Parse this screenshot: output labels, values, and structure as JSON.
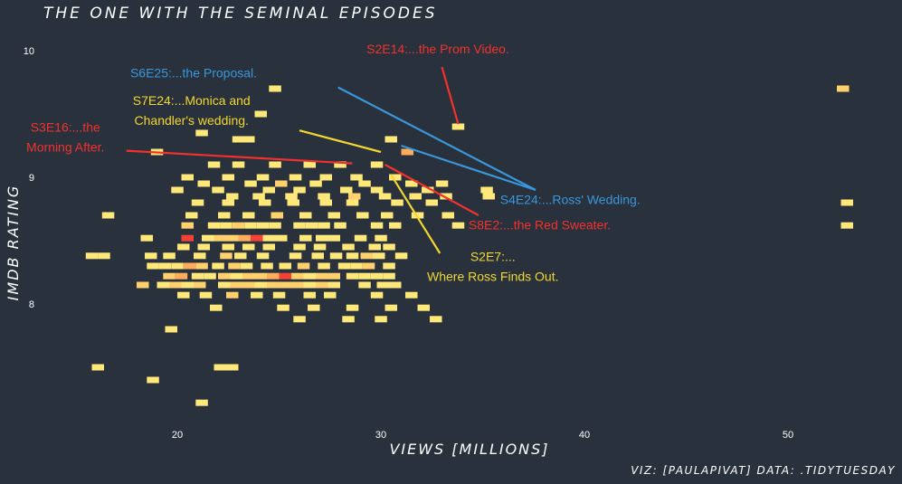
{
  "chart_data": {
    "type": "heatmap",
    "title": "THE ONE WITH THE SEMINAL EPISODES",
    "xlabel": "VIEWS [MILLIONS]",
    "ylabel": "IMDB RATING",
    "caption": "VIZ: [PAULAPIVAT] DATA: .TIDYTUESDAY",
    "xlim": [
      12,
      57
    ],
    "ylim": [
      7.15,
      10.15
    ],
    "xticks": [
      "20",
      "30",
      "40",
      "50"
    ],
    "yticks": [
      "8",
      "9",
      "10"
    ],
    "bin_width": 0.6,
    "bin_height": 0.05,
    "colors": {
      "background": "#29323c",
      "low": "#ffe87a",
      "mid": "#ffab5c",
      "high": "#f44336",
      "red": "#f2312e",
      "blue": "#3a96db",
      "yellow": "#f2d631"
    },
    "cells": [
      {
        "x": 24.8,
        "y": 9.7,
        "n": 1
      },
      {
        "x": 52.7,
        "y": 9.7,
        "n": 2
      },
      {
        "x": 24.1,
        "y": 9.5,
        "n": 1
      },
      {
        "x": 33.8,
        "y": 9.4,
        "n": 1
      },
      {
        "x": 21.2,
        "y": 9.35,
        "n": 1
      },
      {
        "x": 23.0,
        "y": 9.3,
        "n": 1
      },
      {
        "x": 23.5,
        "y": 9.3,
        "n": 1
      },
      {
        "x": 30.5,
        "y": 9.3,
        "n": 1
      },
      {
        "x": 19.0,
        "y": 9.2,
        "n": 1
      },
      {
        "x": 31.3,
        "y": 9.2,
        "n": 3
      },
      {
        "x": 21.8,
        "y": 9.1,
        "n": 1
      },
      {
        "x": 23.0,
        "y": 9.1,
        "n": 1
      },
      {
        "x": 24.8,
        "y": 9.1,
        "n": 1
      },
      {
        "x": 26.5,
        "y": 9.1,
        "n": 1
      },
      {
        "x": 28.0,
        "y": 9.1,
        "n": 1
      },
      {
        "x": 29.8,
        "y": 9.1,
        "n": 1
      },
      {
        "x": 20.5,
        "y": 9.0,
        "n": 1
      },
      {
        "x": 22.5,
        "y": 9.0,
        "n": 1
      },
      {
        "x": 24.2,
        "y": 9.0,
        "n": 1
      },
      {
        "x": 25.8,
        "y": 9.0,
        "n": 1
      },
      {
        "x": 27.3,
        "y": 9.0,
        "n": 1
      },
      {
        "x": 28.8,
        "y": 9.0,
        "n": 1
      },
      {
        "x": 30.7,
        "y": 9.0,
        "n": 1
      },
      {
        "x": 21.3,
        "y": 8.95,
        "n": 1
      },
      {
        "x": 23.6,
        "y": 8.95,
        "n": 1
      },
      {
        "x": 25.1,
        "y": 8.95,
        "n": 2
      },
      {
        "x": 26.8,
        "y": 8.95,
        "n": 1
      },
      {
        "x": 29.2,
        "y": 8.95,
        "n": 1
      },
      {
        "x": 31.5,
        "y": 8.95,
        "n": 1
      },
      {
        "x": 33.0,
        "y": 8.95,
        "n": 1
      },
      {
        "x": 35.2,
        "y": 8.9,
        "n": 1
      },
      {
        "x": 20.0,
        "y": 8.9,
        "n": 1
      },
      {
        "x": 22.0,
        "y": 8.9,
        "n": 1
      },
      {
        "x": 24.5,
        "y": 8.9,
        "n": 1
      },
      {
        "x": 26.0,
        "y": 8.9,
        "n": 1
      },
      {
        "x": 28.3,
        "y": 8.9,
        "n": 1
      },
      {
        "x": 29.8,
        "y": 8.9,
        "n": 1
      },
      {
        "x": 32.3,
        "y": 8.9,
        "n": 1
      },
      {
        "x": 22.7,
        "y": 8.85,
        "n": 1
      },
      {
        "x": 24.0,
        "y": 8.85,
        "n": 1
      },
      {
        "x": 25.6,
        "y": 8.85,
        "n": 1
      },
      {
        "x": 27.2,
        "y": 8.85,
        "n": 1
      },
      {
        "x": 28.7,
        "y": 8.85,
        "n": 2
      },
      {
        "x": 30.2,
        "y": 8.85,
        "n": 1
      },
      {
        "x": 31.7,
        "y": 8.85,
        "n": 1
      },
      {
        "x": 33.2,
        "y": 8.85,
        "n": 1
      },
      {
        "x": 35.3,
        "y": 8.85,
        "n": 1
      },
      {
        "x": 52.9,
        "y": 8.8,
        "n": 1
      },
      {
        "x": 21.0,
        "y": 8.8,
        "n": 1
      },
      {
        "x": 22.5,
        "y": 8.8,
        "n": 1
      },
      {
        "x": 24.3,
        "y": 8.8,
        "n": 1
      },
      {
        "x": 25.7,
        "y": 8.8,
        "n": 1
      },
      {
        "x": 27.3,
        "y": 8.8,
        "n": 1
      },
      {
        "x": 28.6,
        "y": 8.8,
        "n": 1
      },
      {
        "x": 30.8,
        "y": 8.8,
        "n": 1
      },
      {
        "x": 32.5,
        "y": 8.8,
        "n": 1
      },
      {
        "x": 16.6,
        "y": 8.7,
        "n": 1
      },
      {
        "x": 20.7,
        "y": 8.7,
        "n": 1
      },
      {
        "x": 22.3,
        "y": 8.7,
        "n": 1
      },
      {
        "x": 23.5,
        "y": 8.7,
        "n": 1
      },
      {
        "x": 24.9,
        "y": 8.7,
        "n": 2
      },
      {
        "x": 26.3,
        "y": 8.7,
        "n": 1
      },
      {
        "x": 27.7,
        "y": 8.7,
        "n": 1
      },
      {
        "x": 29.1,
        "y": 8.7,
        "n": 1
      },
      {
        "x": 30.3,
        "y": 8.7,
        "n": 1
      },
      {
        "x": 31.8,
        "y": 8.7,
        "n": 1
      },
      {
        "x": 33.3,
        "y": 8.7,
        "n": 1
      },
      {
        "x": 20.5,
        "y": 8.62,
        "n": 2
      },
      {
        "x": 21.8,
        "y": 8.62,
        "n": 1
      },
      {
        "x": 22.4,
        "y": 8.62,
        "n": 1
      },
      {
        "x": 23.0,
        "y": 8.62,
        "n": 2
      },
      {
        "x": 23.6,
        "y": 8.62,
        "n": 1
      },
      {
        "x": 24.2,
        "y": 8.62,
        "n": 1
      },
      {
        "x": 24.8,
        "y": 8.62,
        "n": 1
      },
      {
        "x": 26.0,
        "y": 8.62,
        "n": 1
      },
      {
        "x": 26.6,
        "y": 8.62,
        "n": 1
      },
      {
        "x": 27.2,
        "y": 8.62,
        "n": 1
      },
      {
        "x": 28.0,
        "y": 8.62,
        "n": 1
      },
      {
        "x": 29.8,
        "y": 8.62,
        "n": 1
      },
      {
        "x": 30.7,
        "y": 8.62,
        "n": 1
      },
      {
        "x": 33.8,
        "y": 8.62,
        "n": 1
      },
      {
        "x": 52.9,
        "y": 8.62,
        "n": 1
      },
      {
        "x": 18.5,
        "y": 8.52,
        "n": 1
      },
      {
        "x": 20.5,
        "y": 8.52,
        "n": 4
      },
      {
        "x": 21.5,
        "y": 8.52,
        "n": 1
      },
      {
        "x": 22.1,
        "y": 8.52,
        "n": 2
      },
      {
        "x": 22.7,
        "y": 8.52,
        "n": 2
      },
      {
        "x": 23.3,
        "y": 8.52,
        "n": 3
      },
      {
        "x": 23.9,
        "y": 8.52,
        "n": 4
      },
      {
        "x": 24.5,
        "y": 8.52,
        "n": 1
      },
      {
        "x": 25.1,
        "y": 8.52,
        "n": 1
      },
      {
        "x": 26.3,
        "y": 8.52,
        "n": 1
      },
      {
        "x": 27.1,
        "y": 8.52,
        "n": 1
      },
      {
        "x": 27.7,
        "y": 8.52,
        "n": 1
      },
      {
        "x": 29.0,
        "y": 8.52,
        "n": 1
      },
      {
        "x": 30.0,
        "y": 8.52,
        "n": 1
      },
      {
        "x": 20.3,
        "y": 8.45,
        "n": 1
      },
      {
        "x": 21.3,
        "y": 8.45,
        "n": 1
      },
      {
        "x": 22.5,
        "y": 8.45,
        "n": 1
      },
      {
        "x": 23.5,
        "y": 8.45,
        "n": 1
      },
      {
        "x": 24.5,
        "y": 8.45,
        "n": 1
      },
      {
        "x": 26.0,
        "y": 8.45,
        "n": 1
      },
      {
        "x": 27.0,
        "y": 8.45,
        "n": 1
      },
      {
        "x": 28.4,
        "y": 8.45,
        "n": 1
      },
      {
        "x": 29.7,
        "y": 8.45,
        "n": 1
      },
      {
        "x": 30.4,
        "y": 8.45,
        "n": 1
      },
      {
        "x": 15.8,
        "y": 8.38,
        "n": 1
      },
      {
        "x": 16.4,
        "y": 8.38,
        "n": 1
      },
      {
        "x": 18.7,
        "y": 8.38,
        "n": 1
      },
      {
        "x": 19.6,
        "y": 8.38,
        "n": 1
      },
      {
        "x": 21.1,
        "y": 8.38,
        "n": 1
      },
      {
        "x": 22.4,
        "y": 8.38,
        "n": 2
      },
      {
        "x": 23.1,
        "y": 8.38,
        "n": 1
      },
      {
        "x": 24.2,
        "y": 8.38,
        "n": 1
      },
      {
        "x": 25.8,
        "y": 8.38,
        "n": 1
      },
      {
        "x": 26.9,
        "y": 8.38,
        "n": 1
      },
      {
        "x": 27.8,
        "y": 8.38,
        "n": 1
      },
      {
        "x": 28.6,
        "y": 8.38,
        "n": 1
      },
      {
        "x": 29.3,
        "y": 8.38,
        "n": 2
      },
      {
        "x": 29.9,
        "y": 8.38,
        "n": 1
      },
      {
        "x": 31.0,
        "y": 8.38,
        "n": 1
      },
      {
        "x": 18.8,
        "y": 8.3,
        "n": 1
      },
      {
        "x": 19.4,
        "y": 8.3,
        "n": 1
      },
      {
        "x": 20.0,
        "y": 8.3,
        "n": 1
      },
      {
        "x": 20.6,
        "y": 8.3,
        "n": 3
      },
      {
        "x": 21.2,
        "y": 8.3,
        "n": 2
      },
      {
        "x": 22.0,
        "y": 8.3,
        "n": 1
      },
      {
        "x": 22.8,
        "y": 8.3,
        "n": 2
      },
      {
        "x": 23.4,
        "y": 8.3,
        "n": 1
      },
      {
        "x": 24.4,
        "y": 8.3,
        "n": 1
      },
      {
        "x": 25.3,
        "y": 8.3,
        "n": 1
      },
      {
        "x": 26.2,
        "y": 8.3,
        "n": 2
      },
      {
        "x": 27.2,
        "y": 8.3,
        "n": 1
      },
      {
        "x": 28.2,
        "y": 8.3,
        "n": 1
      },
      {
        "x": 28.8,
        "y": 8.3,
        "n": 1
      },
      {
        "x": 29.4,
        "y": 8.3,
        "n": 2
      },
      {
        "x": 30.4,
        "y": 8.3,
        "n": 1
      },
      {
        "x": 19.6,
        "y": 8.22,
        "n": 2
      },
      {
        "x": 20.2,
        "y": 8.22,
        "n": 3
      },
      {
        "x": 21.0,
        "y": 8.22,
        "n": 1
      },
      {
        "x": 21.6,
        "y": 8.22,
        "n": 1
      },
      {
        "x": 22.3,
        "y": 8.22,
        "n": 2
      },
      {
        "x": 22.9,
        "y": 8.22,
        "n": 1
      },
      {
        "x": 23.5,
        "y": 8.22,
        "n": 2
      },
      {
        "x": 24.1,
        "y": 8.22,
        "n": 2
      },
      {
        "x": 24.7,
        "y": 8.22,
        "n": 3
      },
      {
        "x": 25.3,
        "y": 8.22,
        "n": 4
      },
      {
        "x": 25.9,
        "y": 8.22,
        "n": 2
      },
      {
        "x": 26.5,
        "y": 8.22,
        "n": 1
      },
      {
        "x": 27.1,
        "y": 8.22,
        "n": 2
      },
      {
        "x": 27.7,
        "y": 8.22,
        "n": 2
      },
      {
        "x": 28.6,
        "y": 8.22,
        "n": 1
      },
      {
        "x": 29.2,
        "y": 8.22,
        "n": 1
      },
      {
        "x": 29.8,
        "y": 8.22,
        "n": 1
      },
      {
        "x": 30.4,
        "y": 8.22,
        "n": 1
      },
      {
        "x": 18.3,
        "y": 8.15,
        "n": 2
      },
      {
        "x": 19.3,
        "y": 8.15,
        "n": 1
      },
      {
        "x": 19.9,
        "y": 8.15,
        "n": 2
      },
      {
        "x": 20.5,
        "y": 8.15,
        "n": 1
      },
      {
        "x": 21.1,
        "y": 8.15,
        "n": 2
      },
      {
        "x": 22.3,
        "y": 8.15,
        "n": 1
      },
      {
        "x": 22.9,
        "y": 8.15,
        "n": 2
      },
      {
        "x": 23.5,
        "y": 8.15,
        "n": 2
      },
      {
        "x": 24.1,
        "y": 8.15,
        "n": 1
      },
      {
        "x": 24.7,
        "y": 8.15,
        "n": 2
      },
      {
        "x": 25.3,
        "y": 8.15,
        "n": 2
      },
      {
        "x": 25.9,
        "y": 8.15,
        "n": 2
      },
      {
        "x": 26.5,
        "y": 8.15,
        "n": 1
      },
      {
        "x": 27.1,
        "y": 8.15,
        "n": 2
      },
      {
        "x": 27.7,
        "y": 8.15,
        "n": 1
      },
      {
        "x": 29.2,
        "y": 8.15,
        "n": 1
      },
      {
        "x": 30.1,
        "y": 8.15,
        "n": 1
      },
      {
        "x": 30.7,
        "y": 8.15,
        "n": 1
      },
      {
        "x": 20.3,
        "y": 8.07,
        "n": 1
      },
      {
        "x": 21.4,
        "y": 8.07,
        "n": 1
      },
      {
        "x": 22.7,
        "y": 8.07,
        "n": 2
      },
      {
        "x": 23.9,
        "y": 8.07,
        "n": 1
      },
      {
        "x": 25.0,
        "y": 8.07,
        "n": 1
      },
      {
        "x": 26.5,
        "y": 8.07,
        "n": 1
      },
      {
        "x": 27.5,
        "y": 8.07,
        "n": 1
      },
      {
        "x": 29.8,
        "y": 8.07,
        "n": 1
      },
      {
        "x": 31.5,
        "y": 8.07,
        "n": 1
      },
      {
        "x": 21.9,
        "y": 7.97,
        "n": 1
      },
      {
        "x": 25.2,
        "y": 7.97,
        "n": 1
      },
      {
        "x": 26.7,
        "y": 7.97,
        "n": 1
      },
      {
        "x": 28.6,
        "y": 7.97,
        "n": 1
      },
      {
        "x": 30.5,
        "y": 7.97,
        "n": 1
      },
      {
        "x": 32.1,
        "y": 7.97,
        "n": 1
      },
      {
        "x": 26.0,
        "y": 7.88,
        "n": 1
      },
      {
        "x": 28.4,
        "y": 7.88,
        "n": 1
      },
      {
        "x": 30.0,
        "y": 7.88,
        "n": 1
      },
      {
        "x": 32.7,
        "y": 7.88,
        "n": 1
      },
      {
        "x": 19.7,
        "y": 7.8,
        "n": 1
      },
      {
        "x": 16.1,
        "y": 7.5,
        "n": 1
      },
      {
        "x": 22.1,
        "y": 7.5,
        "n": 1
      },
      {
        "x": 22.7,
        "y": 7.5,
        "n": 1
      },
      {
        "x": 18.8,
        "y": 7.4,
        "n": 1
      },
      {
        "x": 21.2,
        "y": 7.22,
        "n": 1
      }
    ],
    "annotations": [
      {
        "lines": [
          "S2E14:...the Prom Video."
        ],
        "color": "#f2312e",
        "tx": 32.8,
        "ty": 9.98,
        "from": [
          33.0,
          9.87
        ],
        "to": [
          33.8,
          9.42
        ]
      },
      {
        "lines": [
          "S6E25:...the Proposal."
        ],
        "color": "#3a96db",
        "tx": 20.8,
        "ty": 9.79,
        "from": [
          27.9,
          9.71
        ],
        "to": [
          37.6,
          8.9
        ]
      },
      {
        "lines": [
          "S7E24:...Monica and",
          "Chandler's wedding."
        ],
        "color": "#f2d631",
        "tx": 20.7,
        "ty": 9.57,
        "from": [
          26.0,
          9.37
        ],
        "to": [
          30.0,
          9.2
        ]
      },
      {
        "lines": [
          "S3E16:...the",
          "Morning After."
        ],
        "color": "#f2312e",
        "tx": 14.5,
        "ty": 9.36,
        "from": [
          17.5,
          9.21
        ],
        "to": [
          28.6,
          9.11
        ]
      },
      {
        "lines": [
          "S4E24:...Ross' Wedding."
        ],
        "color": "#3a96db",
        "tx": 39.3,
        "ty": 8.79,
        "from": [
          0,
          0
        ],
        "to": [
          0,
          0
        ]
      },
      {
        "lines": [
          "S8E2:...the Red Sweater."
        ],
        "color": "#f2312e",
        "tx": 37.8,
        "ty": 8.59,
        "from": [
          30.2,
          9.1
        ],
        "to": [
          34.8,
          8.7
        ]
      },
      {
        "lines": [
          "S2E7:...",
          "Where Ross Finds Out."
        ],
        "color": "#f2d631",
        "tx": 35.5,
        "ty": 8.34,
        "from": [
          30.5,
          9.02
        ],
        "to": [
          32.9,
          8.4
        ]
      }
    ]
  }
}
